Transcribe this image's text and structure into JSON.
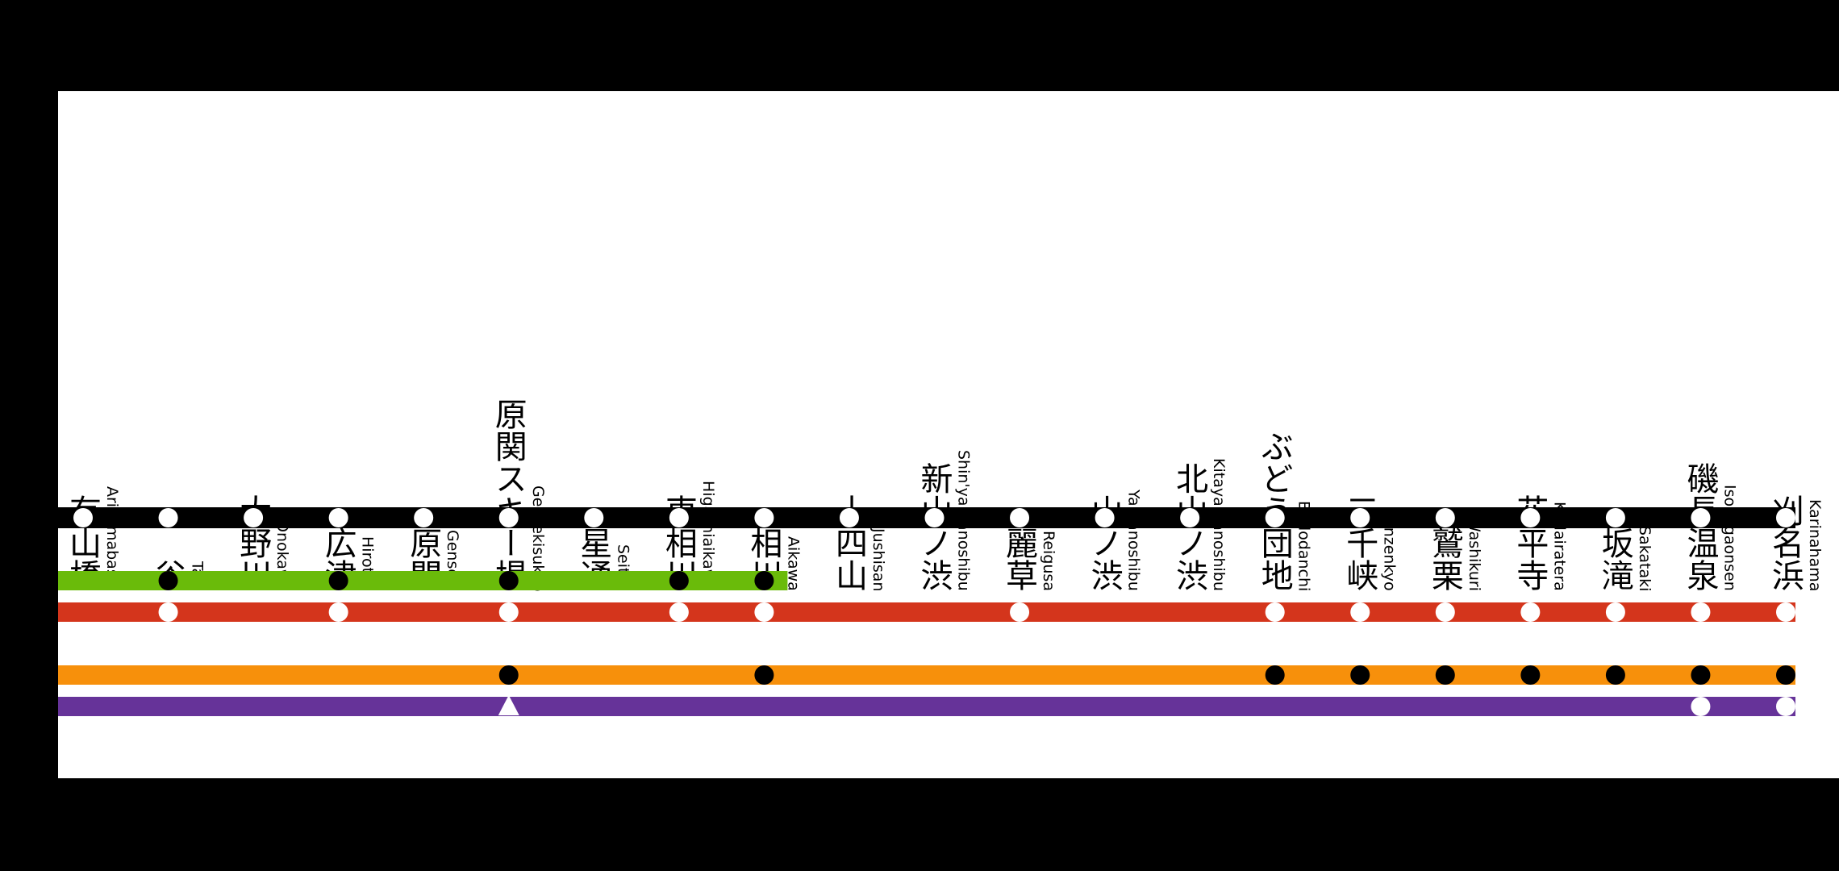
{
  "colors": {
    "main_line": "#000000",
    "green": "#6abb0a",
    "red": "#d4351c",
    "orange": "#f7900b",
    "purple": "#663399",
    "stop_white": "#ffffff",
    "stop_black": "#000000",
    "background": "#000000",
    "panel": "#ffffff"
  },
  "stations": [
    {
      "ja": "有山橋",
      "ro": "Ariyamabashi"
    },
    {
      "ja": "谷",
      "ro": "Tani"
    },
    {
      "ja": "大野川",
      "ro": "Onokawa"
    },
    {
      "ja": "広津",
      "ro": "Hirotsu"
    },
    {
      "ja": "原関",
      "ro": "Genseki"
    },
    {
      "ja": "原関スキー場",
      "ro": "Gensekisukijo"
    },
    {
      "ja": "星通",
      "ro": "Seitsu"
    },
    {
      "ja": "東相川",
      "ro": "Higashiaikawa"
    },
    {
      "ja": "相川",
      "ro": "Aikawa"
    },
    {
      "ja": "十四山",
      "ro": "Jushisan"
    },
    {
      "ja": "新山ノ渋",
      "ro": "Shin'yamanoshibu"
    },
    {
      "ja": "麗草",
      "ro": "Reigusa"
    },
    {
      "ja": "山ノ渋",
      "ro": "Yamanoshibu"
    },
    {
      "ja": "北山ノ渋",
      "ro": "Kitayamanoshibu"
    },
    {
      "ja": "ぶどう団地",
      "ro": "Budodanchi"
    },
    {
      "ja": "三千峡",
      "ro": "Sanzenkyo"
    },
    {
      "ja": "鷲栗",
      "ro": "Washikuri"
    },
    {
      "ja": "花平寺",
      "ro": "Kadairatera"
    },
    {
      "ja": "坂滝",
      "ro": "Sakataki"
    },
    {
      "ja": "磯長温泉",
      "ro": "Isonagaonsen"
    },
    {
      "ja": "刈名浜",
      "ro": "Karinahama"
    }
  ],
  "services": [
    {
      "id": "main",
      "color": "#000000",
      "end_station": 20,
      "stops": [
        0,
        1,
        2,
        3,
        4,
        5,
        6,
        7,
        8,
        9,
        10,
        11,
        12,
        13,
        14,
        15,
        16,
        17,
        18,
        19,
        20
      ],
      "stop_style": "white",
      "triangle_stops": []
    },
    {
      "id": "green",
      "color": "#6abb0a",
      "end_station": 8,
      "stops": [
        1,
        3,
        5,
        7,
        8
      ],
      "stop_style": "black",
      "triangle_stops": []
    },
    {
      "id": "red",
      "color": "#d4351c",
      "end_station": 20,
      "stops": [
        1,
        3,
        5,
        7,
        8,
        11,
        14,
        15,
        16,
        17,
        18,
        19,
        20
      ],
      "stop_style": "white",
      "triangle_stops": []
    },
    {
      "id": "orange",
      "color": "#f7900b",
      "end_station": 20,
      "stops": [
        5,
        8,
        14,
        15,
        16,
        17,
        18,
        19,
        20
      ],
      "stop_style": "black",
      "triangle_stops": []
    },
    {
      "id": "purple",
      "color": "#663399",
      "end_station": 20,
      "stops": [
        19,
        20
      ],
      "stop_style": "white",
      "triangle_stops": [
        5
      ]
    }
  ]
}
